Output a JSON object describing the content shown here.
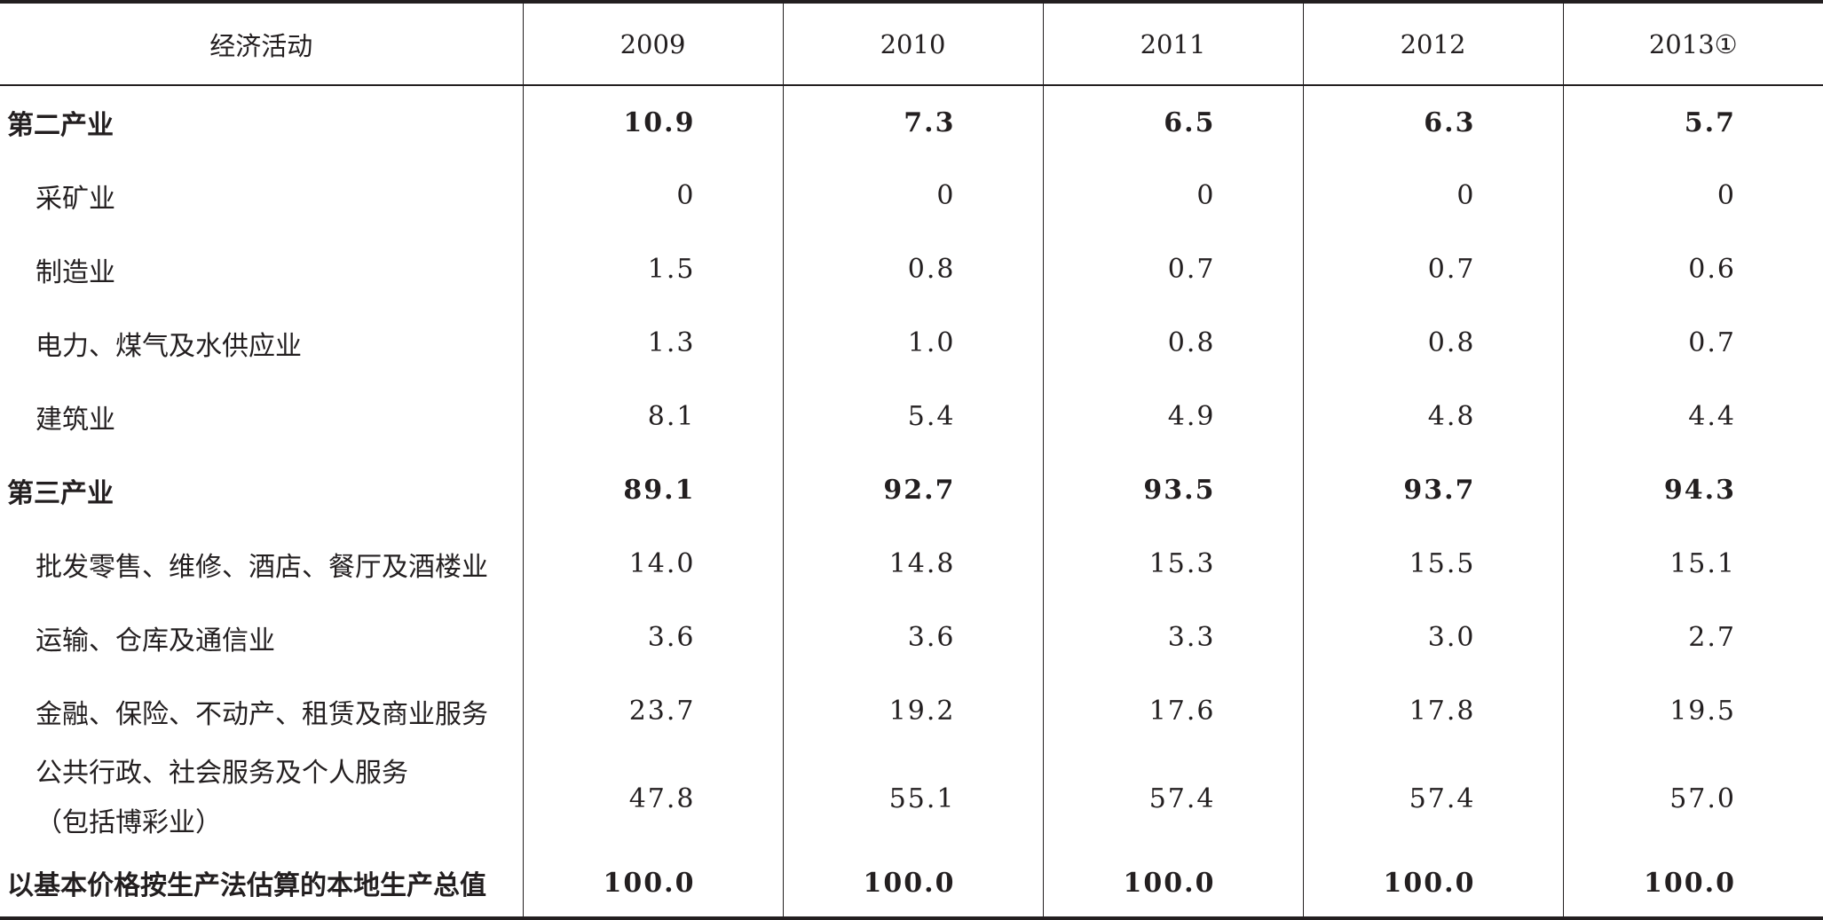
{
  "table": {
    "header": {
      "activity": "经济活动",
      "years": [
        "2009",
        "2010",
        "2011",
        "2012",
        "2013①"
      ]
    },
    "rows": [
      {
        "label": "第二产业",
        "values": [
          "10.9",
          "7.3",
          "6.5",
          "6.3",
          "5.7"
        ]
      },
      {
        "label": "采矿业",
        "values": [
          "0",
          "0",
          "0",
          "0",
          "0"
        ]
      },
      {
        "label": "制造业",
        "values": [
          "1.5",
          "0.8",
          "0.7",
          "0.7",
          "0.6"
        ]
      },
      {
        "label": "电力、煤气及水供应业",
        "values": [
          "1.3",
          "1.0",
          "0.8",
          "0.8",
          "0.7"
        ]
      },
      {
        "label": "建筑业",
        "values": [
          "8.1",
          "5.4",
          "4.9",
          "4.8",
          "4.4"
        ]
      },
      {
        "label": "第三产业",
        "values": [
          "89.1",
          "92.7",
          "93.5",
          "93.7",
          "94.3"
        ]
      },
      {
        "label": "批发零售、维修、酒店、餐厅及酒楼业",
        "values": [
          "14.0",
          "14.8",
          "15.3",
          "15.5",
          "15.1"
        ]
      },
      {
        "label": "运输、仓库及通信业",
        "values": [
          "3.6",
          "3.6",
          "3.3",
          "3.0",
          "2.7"
        ]
      },
      {
        "label": "金融、保险、不动产、租赁及商业服务",
        "values": [
          "23.7",
          "19.2",
          "17.6",
          "17.8",
          "19.5"
        ]
      },
      {
        "label_line1": "公共行政、社会服务及个人服务",
        "label_line2": "（包括博彩业）",
        "values": [
          "47.8",
          "55.1",
          "57.4",
          "57.4",
          "57.0"
        ]
      },
      {
        "label": "以基本价格按生产法估算的本地生产总值",
        "values": [
          "100.0",
          "100.0",
          "100.0",
          "100.0",
          "100.0"
        ]
      }
    ]
  }
}
